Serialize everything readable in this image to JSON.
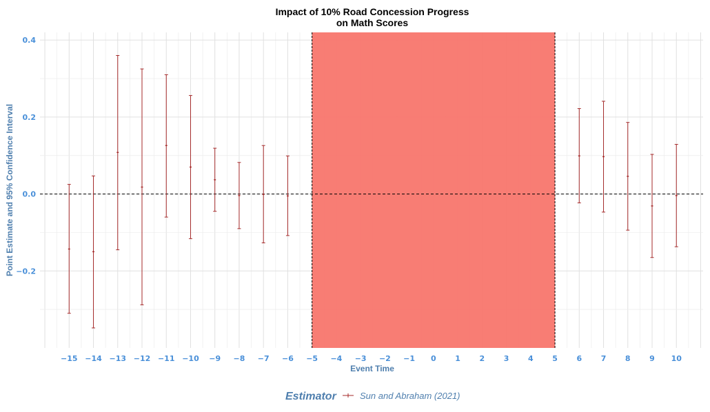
{
  "chart_data": {
    "type": "errorbar",
    "title": "Impact of 10% Road Concession Progress",
    "subtitle": "on Math Scores",
    "xlabel": "Event Time",
    "ylabel": "Point Estimate and 95% Confidence Interval",
    "xlim": [
      -16.2,
      11.1
    ],
    "ylim": [
      -0.4,
      0.42
    ],
    "x_ticks": [
      -15,
      -14,
      -13,
      -12,
      -11,
      -10,
      -9,
      -8,
      -7,
      -6,
      -5,
      -4,
      -3,
      -2,
      -1,
      0,
      1,
      2,
      3,
      4,
      5,
      6,
      7,
      8,
      9,
      10
    ],
    "y_ticks": [
      -0.2,
      0.0,
      0.2,
      0.4
    ],
    "y_tick_labels": [
      "-0.2",
      "0.0",
      "0.2",
      "0.4"
    ],
    "grid": true,
    "reference_line_y": 0.0,
    "shaded_region": {
      "x_start": -5,
      "x_end": 5,
      "color": "#f8766d"
    },
    "legend": {
      "title": "Estimator",
      "position": "bottom"
    },
    "series": [
      {
        "name": "Sun and Abraham (2021)",
        "color": "#a52a2a",
        "points": [
          {
            "x": -15,
            "estimate": -0.143,
            "lower": -0.31,
            "upper": 0.025
          },
          {
            "x": -14,
            "estimate": -0.15,
            "lower": -0.348,
            "upper": 0.047
          },
          {
            "x": -13,
            "estimate": 0.108,
            "lower": -0.145,
            "upper": 0.36
          },
          {
            "x": -12,
            "estimate": 0.018,
            "lower": -0.288,
            "upper": 0.325
          },
          {
            "x": -11,
            "estimate": 0.126,
            "lower": -0.06,
            "upper": 0.31
          },
          {
            "x": -10,
            "estimate": 0.07,
            "lower": -0.116,
            "upper": 0.256
          },
          {
            "x": -9,
            "estimate": 0.037,
            "lower": -0.045,
            "upper": 0.119
          },
          {
            "x": -8,
            "estimate": -0.004,
            "lower": -0.09,
            "upper": 0.082
          },
          {
            "x": -7,
            "estimate": -0.001,
            "lower": -0.127,
            "upper": 0.126
          },
          {
            "x": -6,
            "estimate": -0.005,
            "lower": -0.108,
            "upper": 0.099
          },
          {
            "x": 6,
            "estimate": 0.099,
            "lower": -0.023,
            "upper": 0.222
          },
          {
            "x": 7,
            "estimate": 0.097,
            "lower": -0.047,
            "upper": 0.241
          },
          {
            "x": 8,
            "estimate": 0.046,
            "lower": -0.094,
            "upper": 0.186
          },
          {
            "x": 9,
            "estimate": -0.031,
            "lower": -0.165,
            "upper": 0.103
          },
          {
            "x": 10,
            "estimate": -0.004,
            "lower": -0.137,
            "upper": 0.129
          }
        ]
      }
    ]
  }
}
